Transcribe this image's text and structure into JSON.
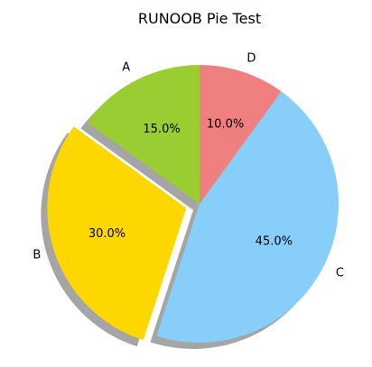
{
  "chart_data": {
    "type": "pie",
    "title": "RUNOOB Pie Test",
    "categories": [
      "A",
      "B",
      "C",
      "D"
    ],
    "values": [
      15,
      30,
      45,
      10
    ],
    "value_labels": [
      "15.0%",
      "30.0%",
      "45.0%",
      "10.0%"
    ],
    "colors": [
      "#9acd32",
      "#ffd700",
      "#87cefa",
      "#f08080"
    ],
    "explode": [
      0,
      0.1,
      0,
      0
    ],
    "start_angle_deg": 90,
    "direction": "counterclockwise",
    "shadow": true,
    "shadow_color": "#7f7f7f",
    "legend": "none",
    "grid": false
  }
}
